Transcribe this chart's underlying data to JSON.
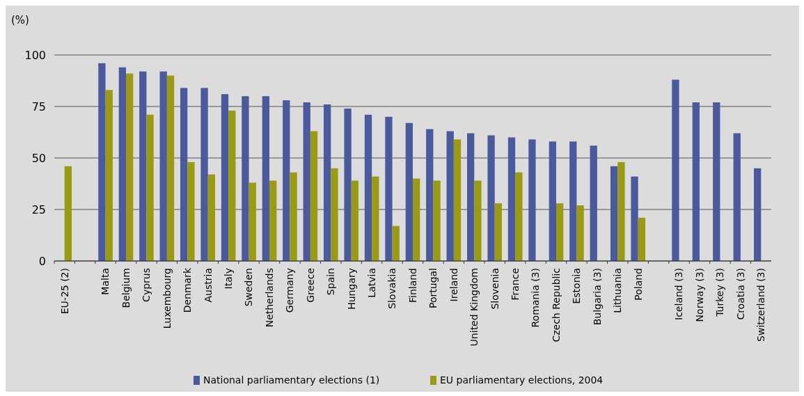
{
  "chart_data": {
    "type": "bar",
    "ylabel": "(%)",
    "categories": [
      "EU-25 (2)",
      null,
      "Malta",
      "Belgium",
      "Cyprus",
      "Luxembourg",
      "Denmark",
      "Austria",
      "Italy",
      "Sweden",
      "Netherlands",
      "Germany",
      "Greece",
      "Spain",
      "Hungary",
      "Latvia",
      "Slovakia",
      "Finland",
      "Portugal",
      "Ireland",
      "United Kingdom",
      "Slovenia",
      "France",
      "Romania (3)",
      "Czech Republic",
      "Estonia",
      "Bulgaria (3)",
      "Lithuania",
      "Poland",
      null,
      "Iceland (3)",
      "Norway (3)",
      "Turkey (3)",
      "Croatia (3)",
      "Switzerland (3)"
    ],
    "series": [
      {
        "name": "National parliamentary elections (1)",
        "color": "#4a5a9c",
        "values": [
          null,
          null,
          96,
          94,
          92,
          92,
          84,
          84,
          81,
          80,
          80,
          78,
          77,
          76,
          74,
          71,
          70,
          67,
          64,
          63,
          62,
          61,
          60,
          59,
          58,
          58,
          56,
          46,
          41,
          null,
          88,
          77,
          77,
          62,
          45
        ]
      },
      {
        "name": "EU parliamentary elections, 2004",
        "color": "#9a9a14",
        "values": [
          46,
          null,
          83,
          91,
          71,
          90,
          48,
          42,
          73,
          38,
          39,
          43,
          63,
          45,
          39,
          41,
          17,
          40,
          39,
          59,
          39,
          28,
          43,
          null,
          28,
          27,
          null,
          48,
          21,
          null,
          null,
          null,
          null,
          null,
          null
        ]
      }
    ],
    "ylim": [
      0,
      100
    ],
    "yticks": [
      0,
      25,
      50,
      75,
      100
    ],
    "grid": "y",
    "legend": "bottom"
  }
}
